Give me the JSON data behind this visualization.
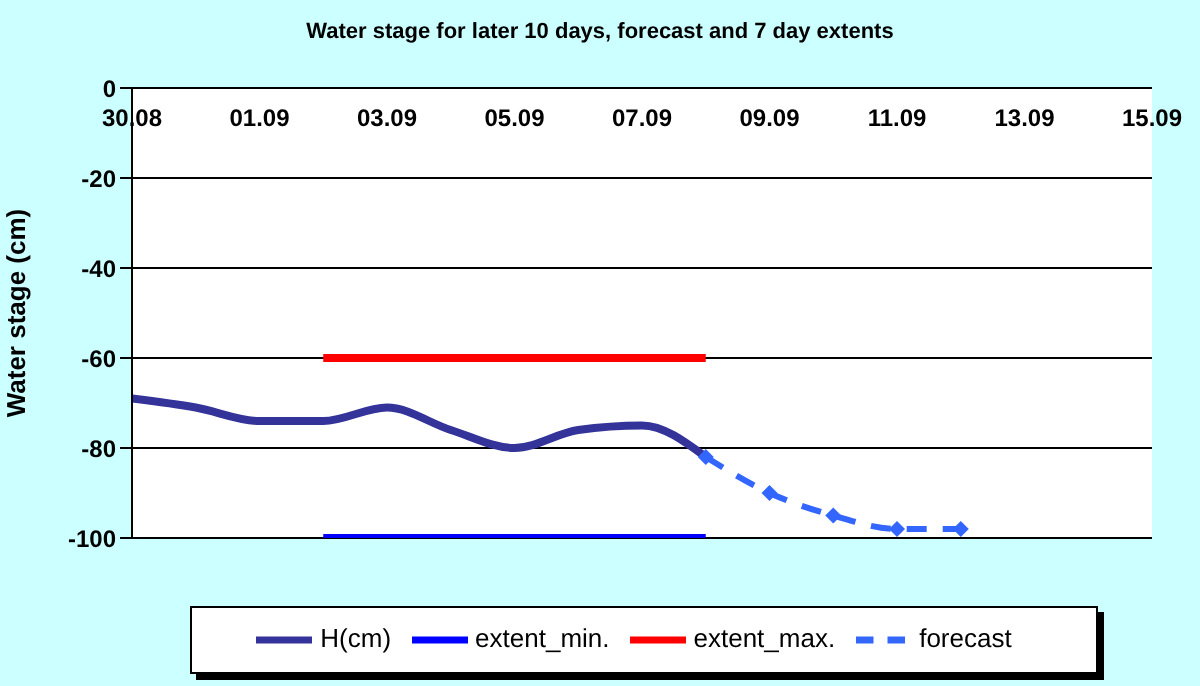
{
  "chart_data": {
    "type": "line",
    "title": "Water stage for later 10 days, forecast and 7 day extents",
    "ylabel": "Water stage (cm)",
    "x": [
      "--08-30",
      "--08-31",
      "--09-01",
      "--09-02",
      "--09-03",
      "--09-04",
      "--09-05",
      "--09-06",
      "--09-07",
      "--09-08"
    ],
    "series": [
      {
        "name": "H(cm)",
        "color": "#333399",
        "values": [
          -69,
          -71,
          -74,
          -74,
          -71,
          -76,
          -80,
          -76,
          -75,
          -82
        ]
      },
      {
        "name": "extent_min.",
        "color": "#0000ff",
        "x": [
          "--09-02",
          "--09-08"
        ],
        "values": [
          -100,
          -100
        ]
      },
      {
        "name": "extent_max.",
        "color": "#ff0000",
        "x": [
          "--09-02",
          "--09-08"
        ],
        "values": [
          -60,
          -60
        ]
      },
      {
        "name": "forecast",
        "color": "#3366ff",
        "x": [
          "--09-08",
          "--09-09",
          "--09-10",
          "--09-11",
          "--09-12"
        ],
        "values": [
          -82,
          -90,
          -95,
          -98,
          -98
        ],
        "marker": "diamond",
        "line_style": "dashed"
      }
    ],
    "xlim": [
      "--08-30",
      "--09-15"
    ],
    "xticks": [
      {
        "value": "--08-30",
        "label": "30.08"
      },
      {
        "value": "--09-01",
        "label": "01.09"
      },
      {
        "value": "--09-03",
        "label": "03.09"
      },
      {
        "value": "--09-05",
        "label": "05.09"
      },
      {
        "value": "--09-07",
        "label": "07.09"
      },
      {
        "value": "--09-09",
        "label": "09.09"
      },
      {
        "value": "--09-11",
        "label": "11.09"
      },
      {
        "value": "--09-13",
        "label": "13.09"
      },
      {
        "value": "--09-15",
        "label": "15.09"
      }
    ],
    "ylim": [
      -100,
      0
    ],
    "yticks": [
      -100,
      -80,
      -60,
      -40,
      -20,
      0
    ],
    "grid": "y",
    "legend": "bottom",
    "marker": "none",
    "line_style": "solid"
  }
}
